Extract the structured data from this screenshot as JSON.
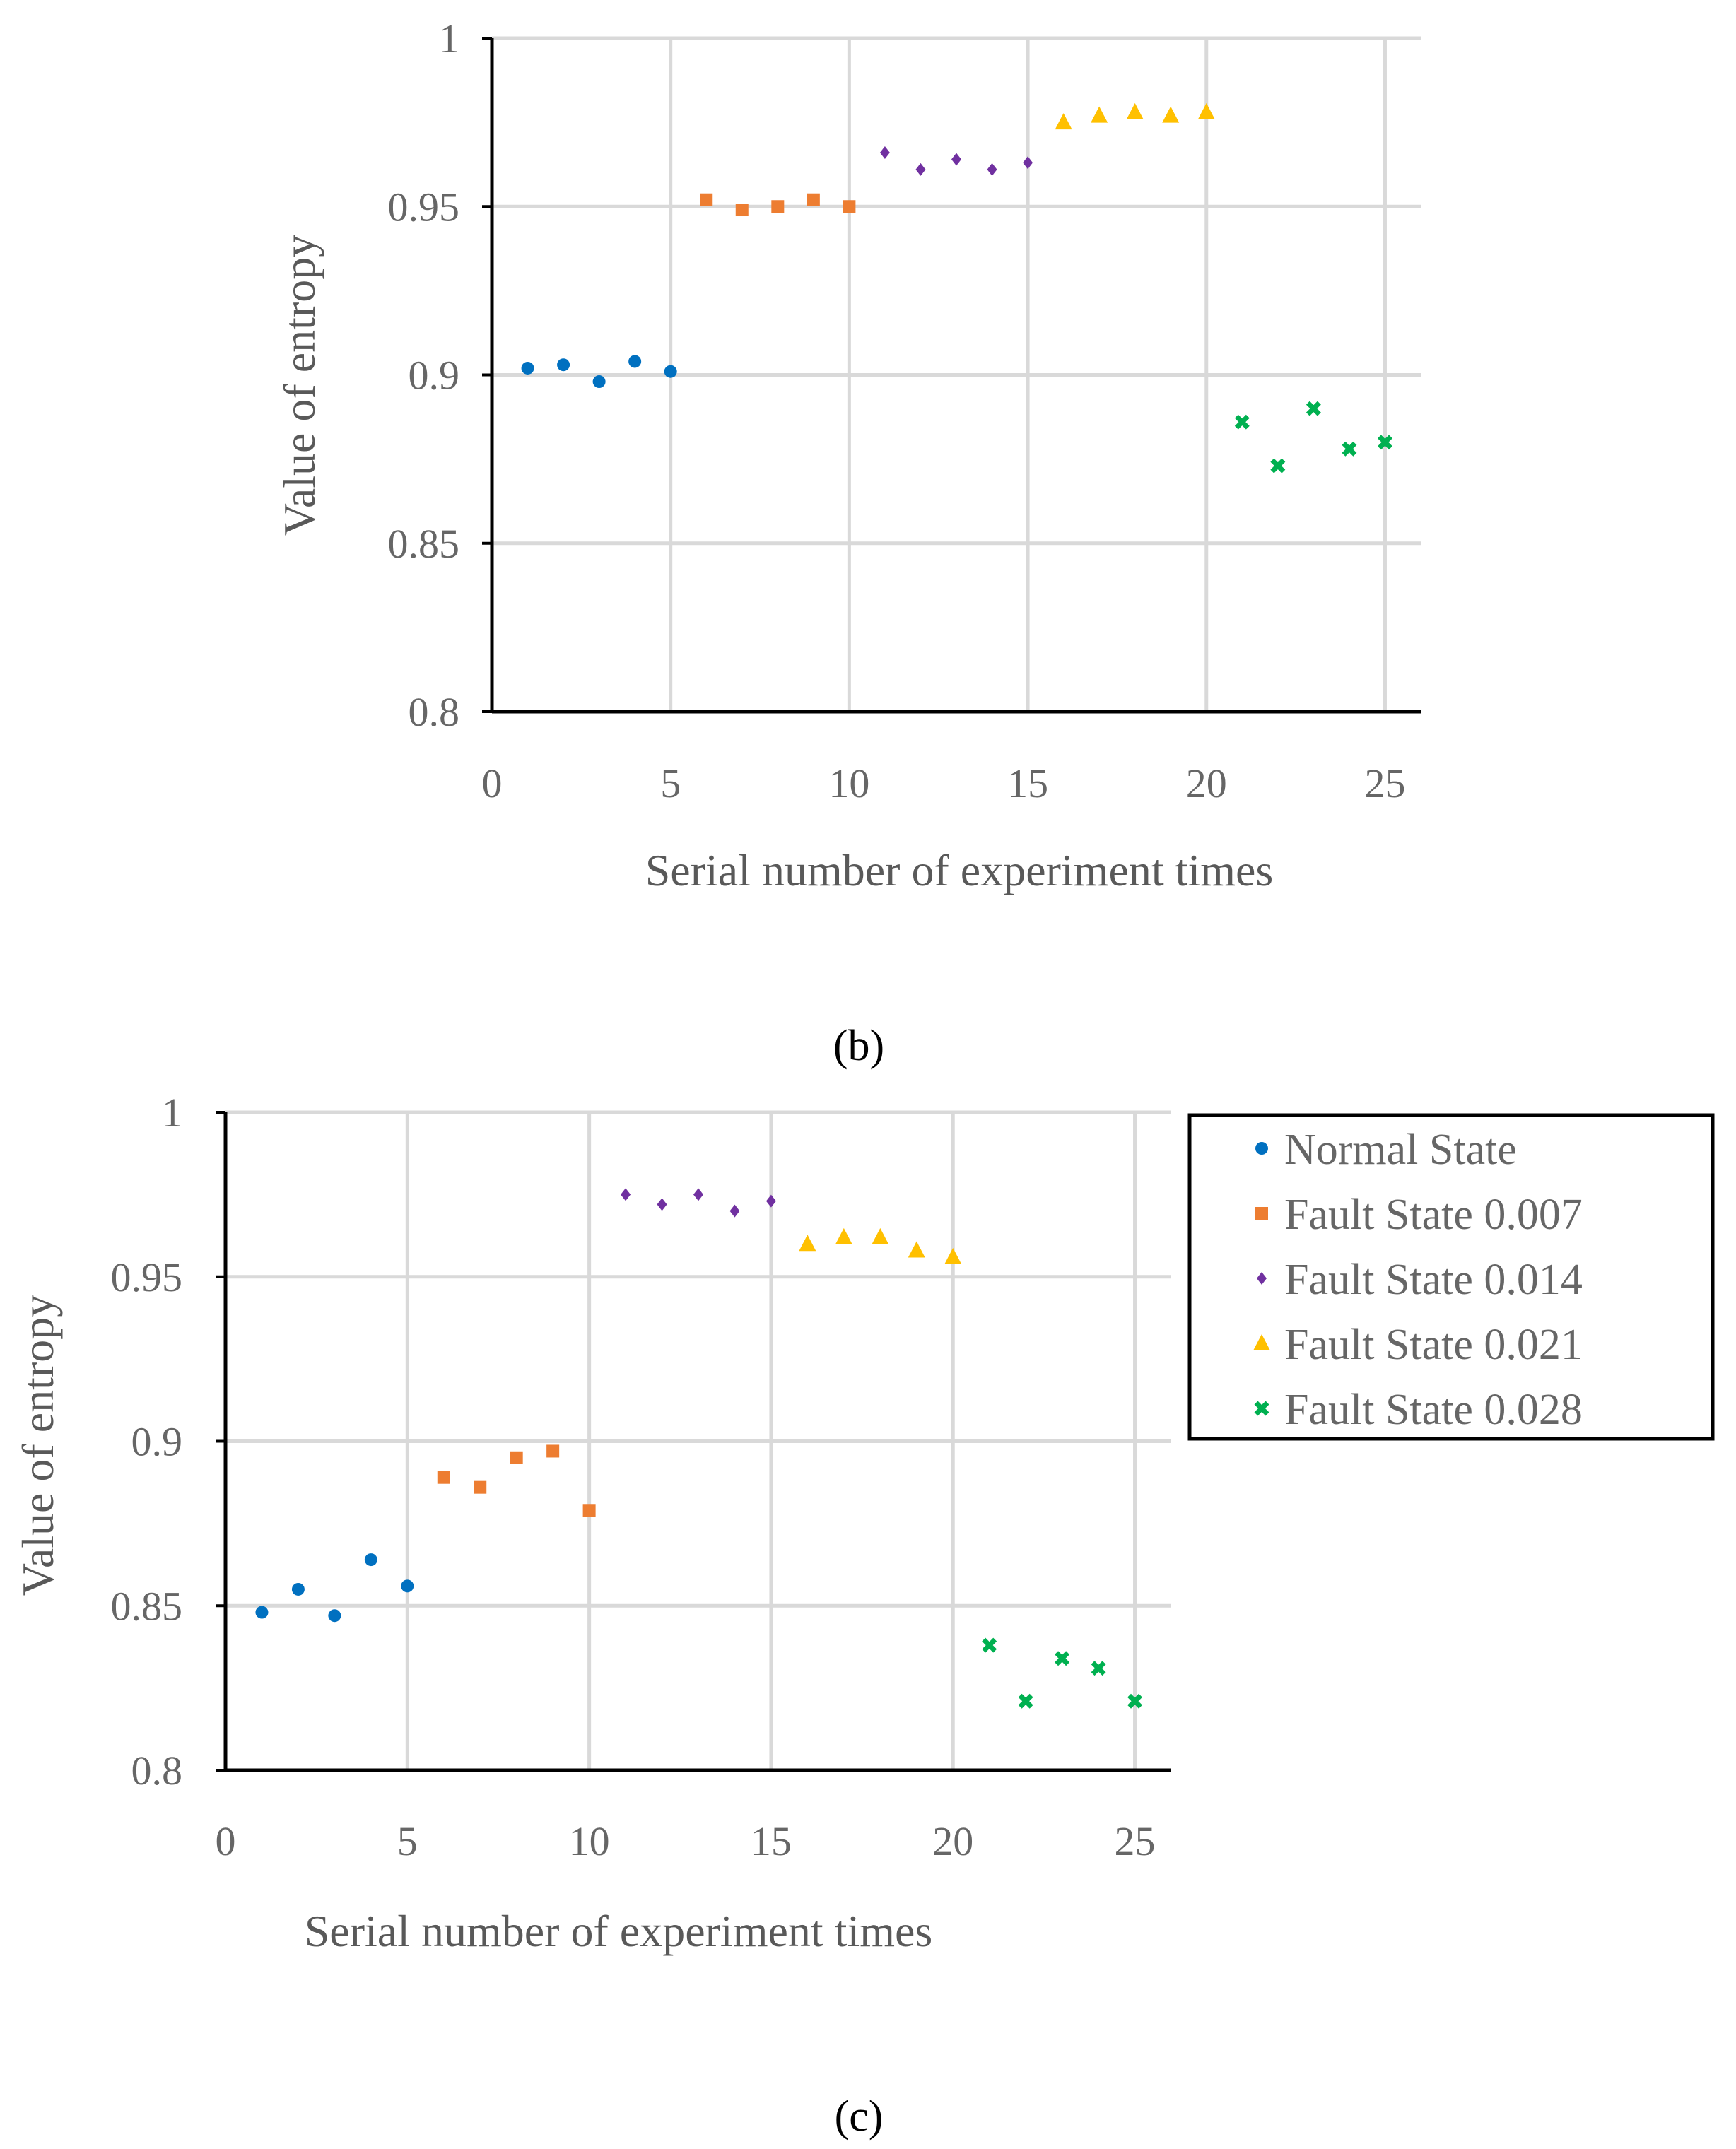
{
  "colors": {
    "grid": "#d9d9d9",
    "axis": "#000000",
    "tick_text": "#666666",
    "title_text": "#595959",
    "series": [
      "#0070c0",
      "#ed7d31",
      "#7030a0",
      "#ffc000",
      "#00b050"
    ]
  },
  "captions": [
    "(b)",
    "(c)"
  ],
  "legend": {
    "entries": [
      {
        "label": "Normal State",
        "marker": "circle"
      },
      {
        "label": "Fault State 0.007",
        "marker": "square"
      },
      {
        "label": "Fault State 0.014",
        "marker": "diamond"
      },
      {
        "label": "Fault State 0.021",
        "marker": "triangle"
      },
      {
        "label": "Fault State 0.028",
        "marker": "x"
      }
    ]
  },
  "chart_data": [
    {
      "id": "b",
      "type": "scatter",
      "xlabel": "Serial number of experiment times",
      "ylabel": "Value of entropy",
      "xlim": [
        0,
        26
      ],
      "ylim": [
        0.8,
        1.0
      ],
      "xticks": [
        "0",
        "5",
        "10",
        "15",
        "20",
        "25"
      ],
      "yticks": [
        "0.8",
        "0.85",
        "0.9",
        "0.95",
        "1"
      ],
      "grid": true,
      "series": [
        {
          "name": "Normal State",
          "x": [
            1,
            2,
            3,
            4,
            5
          ],
          "y": [
            0.902,
            0.903,
            0.898,
            0.904,
            0.901
          ]
        },
        {
          "name": "Fault State 0.007",
          "x": [
            6,
            7,
            8,
            9,
            10
          ],
          "y": [
            0.952,
            0.949,
            0.95,
            0.952,
            0.95
          ]
        },
        {
          "name": "Fault State 0.014",
          "x": [
            11,
            12,
            13,
            14,
            15
          ],
          "y": [
            0.966,
            0.961,
            0.964,
            0.961,
            0.963
          ]
        },
        {
          "name": "Fault State 0.021",
          "x": [
            16,
            17,
            18,
            19,
            20
          ],
          "y": [
            0.975,
            0.977,
            0.978,
            0.977,
            0.978
          ]
        },
        {
          "name": "Fault State 0.028",
          "x": [
            21,
            22,
            23,
            24,
            25
          ],
          "y": [
            0.886,
            0.873,
            0.89,
            0.878,
            0.88
          ]
        }
      ]
    },
    {
      "id": "c",
      "type": "scatter",
      "xlabel": "Serial number of experiment times",
      "ylabel": "Value of entropy",
      "xlim": [
        0,
        26
      ],
      "ylim": [
        0.8,
        1.0
      ],
      "xticks": [
        "0",
        "5",
        "10",
        "15",
        "20",
        "25"
      ],
      "yticks": [
        "0.8",
        "0.85",
        "0.9",
        "0.95",
        "1"
      ],
      "grid": true,
      "legend_position": "right",
      "series": [
        {
          "name": "Normal State",
          "x": [
            1,
            2,
            3,
            4,
            5
          ],
          "y": [
            0.848,
            0.855,
            0.847,
            0.864,
            0.856
          ]
        },
        {
          "name": "Fault State 0.007",
          "x": [
            6,
            7,
            8,
            9,
            10
          ],
          "y": [
            0.889,
            0.886,
            0.895,
            0.897,
            0.879
          ]
        },
        {
          "name": "Fault State 0.014",
          "x": [
            11,
            12,
            13,
            14,
            15
          ],
          "y": [
            0.975,
            0.972,
            0.975,
            0.97,
            0.973
          ]
        },
        {
          "name": "Fault State 0.021",
          "x": [
            16,
            17,
            18,
            19,
            20
          ],
          "y": [
            0.96,
            0.962,
            0.962,
            0.958,
            0.956
          ]
        },
        {
          "name": "Fault State 0.028",
          "x": [
            21,
            22,
            23,
            24,
            25
          ],
          "y": [
            0.838,
            0.821,
            0.834,
            0.831,
            0.821
          ]
        }
      ]
    }
  ]
}
